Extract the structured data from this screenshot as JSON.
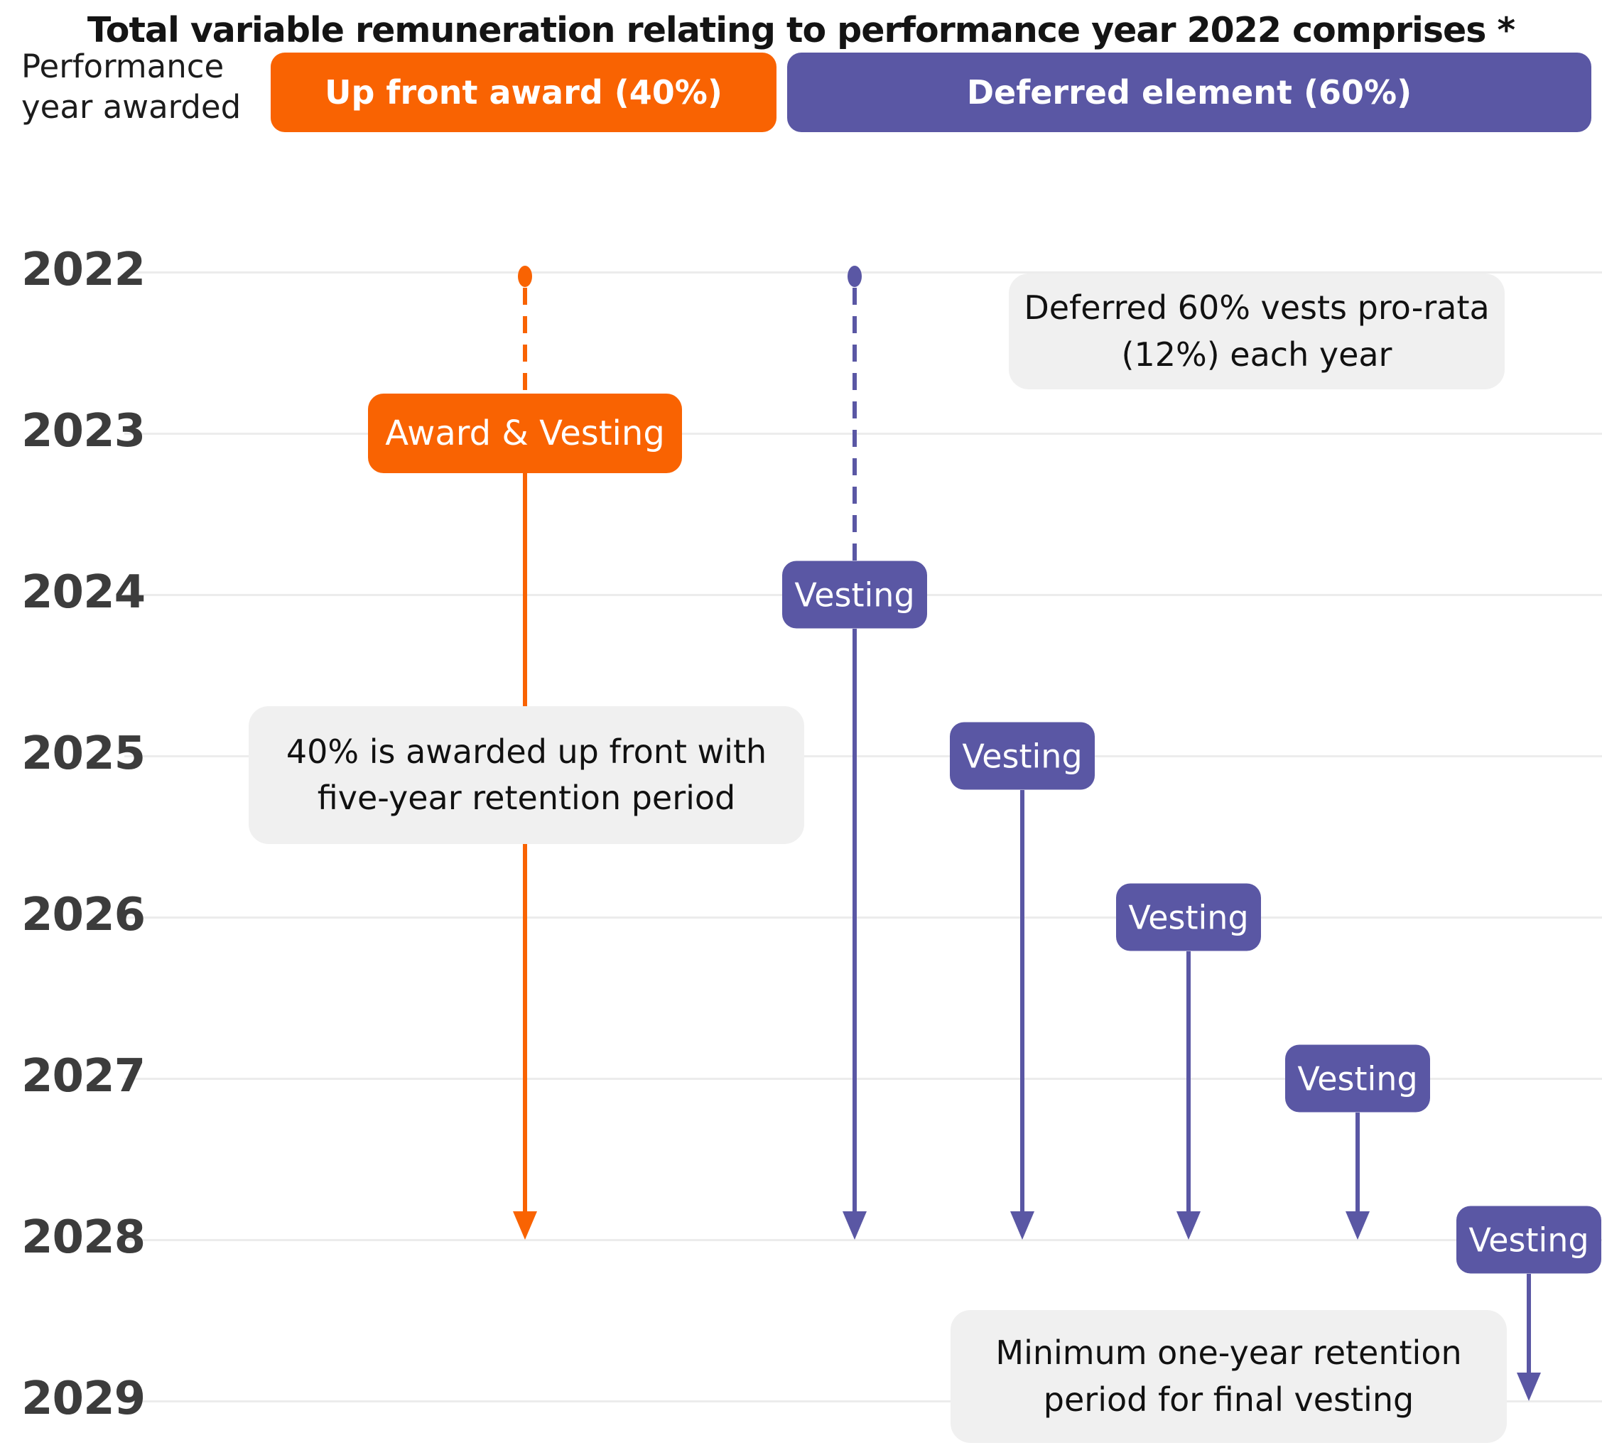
{
  "title": "Total variable remuneration relating to performance year 2022 comprises *",
  "colors": {
    "orange": "#F96302",
    "purple": "#5A57A4",
    "gridline": "#ECECEC",
    "info_box_background": "#F0F0F0",
    "year_label": "#3C3C3C"
  },
  "y_axis": {
    "label_line1": "Performance",
    "label_line2": "year awarded",
    "years": [
      "2022",
      "2023",
      "2024",
      "2025",
      "2026",
      "2027",
      "2028",
      "2029"
    ]
  },
  "legend": {
    "upfront": {
      "label": "Up front award (40%)",
      "share": "40%"
    },
    "deferred": {
      "label": "Deferred element (60%)",
      "share": "60%"
    }
  },
  "annotations": {
    "deferred_note": {
      "line1": "Deferred 60% vests pro-rata",
      "line2": "(12%) each year"
    },
    "upfront_note": {
      "line1": "40% is awarded up front with",
      "line2": "five-year retention period"
    },
    "retention_note": {
      "line1": "Minimum one-year retention",
      "line2": "period for final vesting"
    }
  },
  "timeline": {
    "upfront": {
      "start_year": "2022",
      "badge_year": "2023",
      "badge_label": "Award & Vesting",
      "end_year": "2028"
    },
    "deferred": [
      {
        "start_year": "2022",
        "badge_year": "2024",
        "badge_label": "Vesting",
        "end_year": "2028"
      },
      {
        "badge_year": "2025",
        "badge_label": "Vesting",
        "end_year": "2028"
      },
      {
        "badge_year": "2026",
        "badge_label": "Vesting",
        "end_year": "2028"
      },
      {
        "badge_year": "2027",
        "badge_label": "Vesting",
        "end_year": "2028"
      },
      {
        "badge_year": "2028",
        "badge_label": "Vesting",
        "end_year": "2029"
      }
    ]
  }
}
